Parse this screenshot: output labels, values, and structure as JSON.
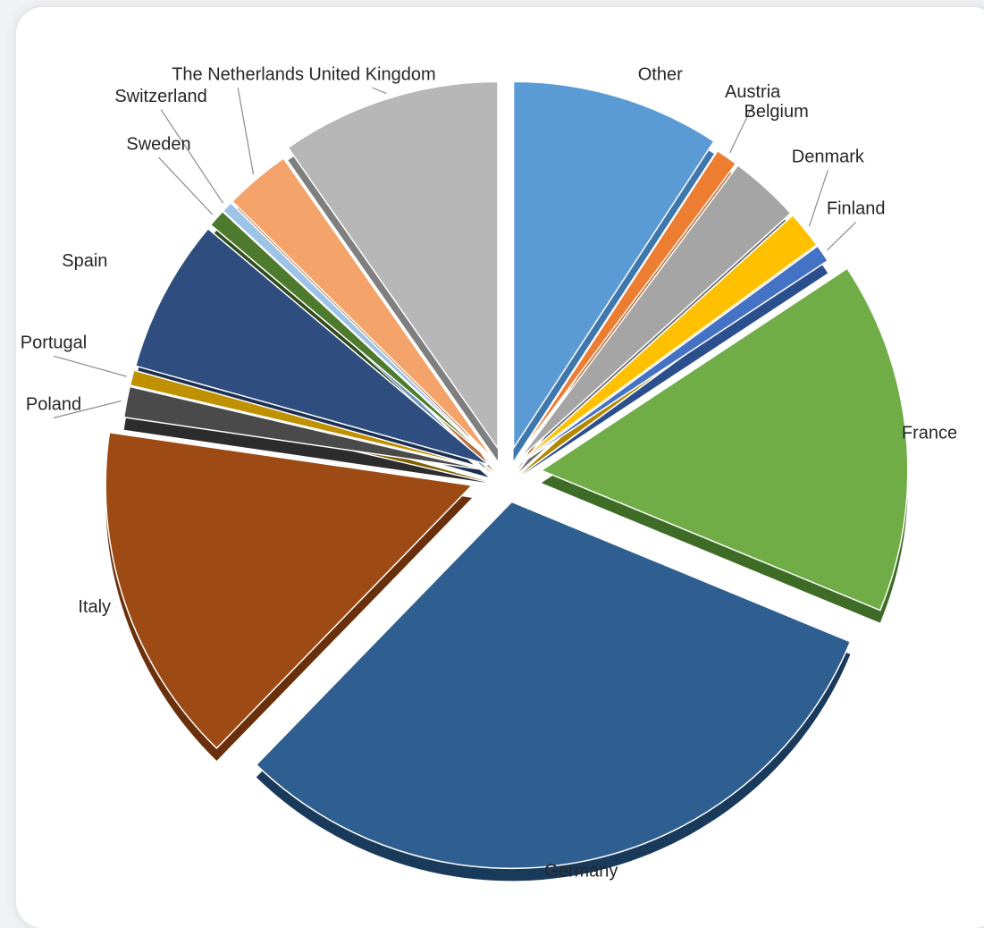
{
  "chart_data": {
    "type": "pie",
    "title": "",
    "labels_outside": true,
    "exploded": true,
    "style": "3d",
    "slices": [
      {
        "label": "Other",
        "value": 9.5,
        "color": "#5b9bd5",
        "side": "#3d77ac"
      },
      {
        "label": "Austria",
        "value": 1.0,
        "color": "#ed7d31",
        "side": "#b15a1e"
      },
      {
        "label": "Belgium",
        "value": 3.2,
        "color": "#a5a5a5",
        "side": "#6f6f6f"
      },
      {
        "label": "Denmark",
        "value": 1.7,
        "color": "#ffc000",
        "side": "#b38800"
      },
      {
        "label": "Finland",
        "value": 0.8,
        "color": "#4472c4",
        "side": "#2b4f8c"
      },
      {
        "label": "France",
        "value": 16.0,
        "color": "#70ad47",
        "side": "#3e6b26"
      },
      {
        "label": "Germany",
        "value": 32.0,
        "color": "#2e5f90",
        "side": "#1a3a5c"
      },
      {
        "label": "Italy",
        "value": 15.5,
        "color": "#9e4a14",
        "side": "#6a300b"
      },
      {
        "label": "Poland",
        "value": 1.4,
        "color": "#4a4a4a",
        "side": "#2c2c2c"
      },
      {
        "label": "Portugal",
        "value": 0.7,
        "color": "#bf9000",
        "side": "#7f6000"
      },
      {
        "label": "Spain",
        "value": 7.0,
        "color": "#2f4d7e",
        "side": "#1b2f52"
      },
      {
        "label": "Sweden",
        "value": 0.8,
        "color": "#4e7a2e",
        "side": "#2f4a1b"
      },
      {
        "label": "Switzerland",
        "value": 0.5,
        "color": "#9dc3e6",
        "side": "#6f96ba"
      },
      {
        "label": "The Netherlands",
        "value": 3.0,
        "color": "#f4a46a",
        "side": "#b8703c"
      },
      {
        "label": "United Kingdom",
        "value": 10.0,
        "color": "#b7b7b7",
        "side": "#7f7f7f"
      }
    ]
  }
}
